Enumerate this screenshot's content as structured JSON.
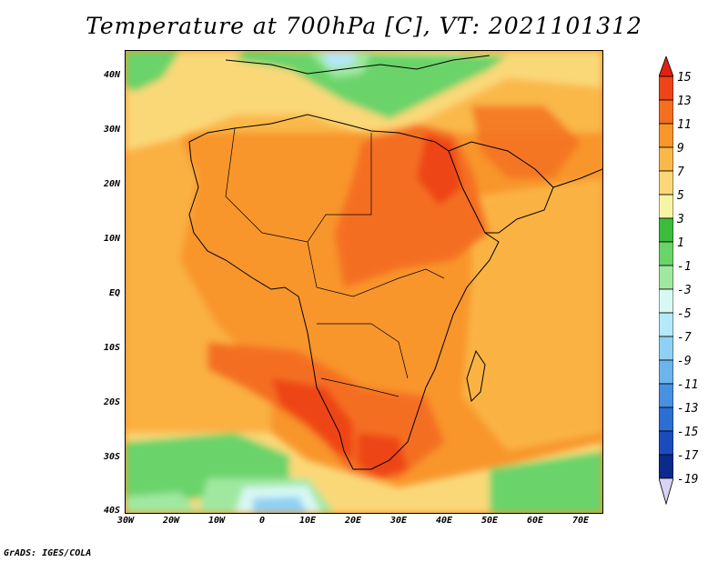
{
  "title": "Temperature at 700hPa [C], VT: 2021101312",
  "credit": "GrADS: IGES/COLA",
  "map": {
    "lat_labels": [
      "40N",
      "30N",
      "20N",
      "10N",
      "EQ",
      "10S",
      "20S",
      "30S",
      "40S"
    ],
    "lon_labels": [
      "30W",
      "20W",
      "10W",
      "0",
      "10E",
      "20E",
      "30E",
      "40E",
      "50E",
      "60E",
      "70E"
    ],
    "lat_range": [
      -40,
      45
    ],
    "lon_range": [
      -30,
      75
    ]
  },
  "colorbar": {
    "labels": [
      "15",
      "13",
      "11",
      "9",
      "7",
      "5",
      "3",
      "1",
      "-1",
      "-3",
      "-5",
      "-7",
      "-9",
      "-11",
      "-13",
      "-15",
      "-17",
      "-19"
    ],
    "colors": [
      "#e02010",
      "#ee4418",
      "#f46e20",
      "#f8962c",
      "#fab848",
      "#fad878",
      "#f8f4a6",
      "#3cbc3c",
      "#6ad36a",
      "#a0e8a0",
      "#d8f8f4",
      "#b4e8fa",
      "#90d0f4",
      "#6cb4ec",
      "#4890e0",
      "#2c6ed2",
      "#1c4cbc",
      "#0c2a8c",
      "#d8d4f4"
    ]
  }
}
